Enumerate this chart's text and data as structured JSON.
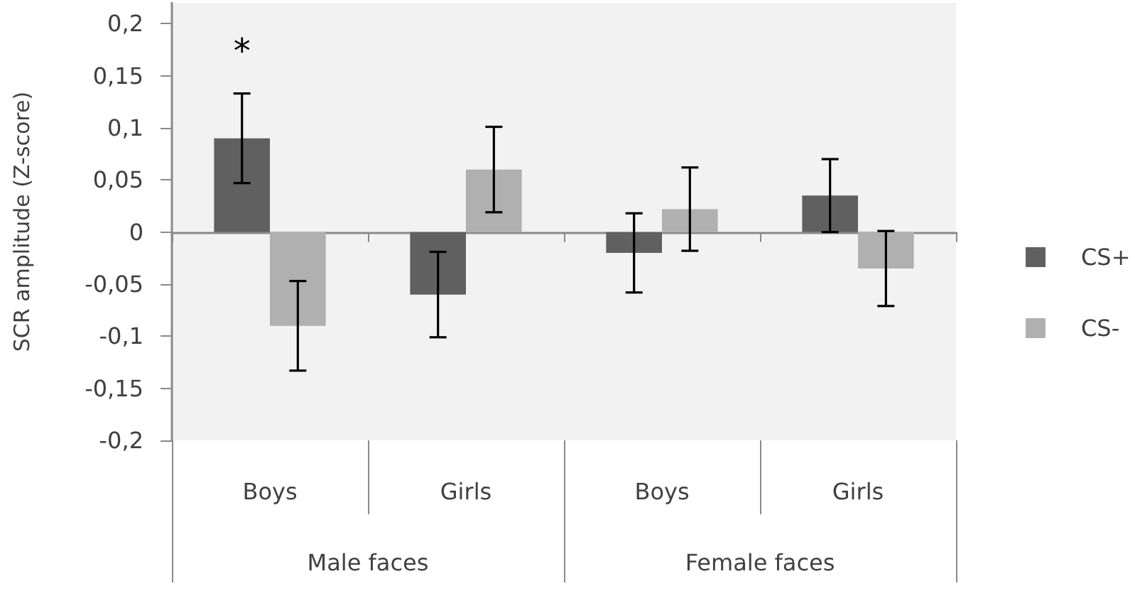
{
  "chart_data": {
    "type": "bar",
    "ylabel": "SCR amplitude (Z-score)",
    "categories": [
      "Boys",
      "Girls",
      "Boys",
      "Girls"
    ],
    "series": [
      {
        "name": "CS+",
        "color": "#606060",
        "values": [
          0.09,
          -0.06,
          -0.02,
          0.035
        ],
        "errors": [
          0.043,
          0.041,
          0.038,
          0.035
        ]
      },
      {
        "name": "CS-",
        "color": "#b0b0b0",
        "values": [
          -0.09,
          0.06,
          0.022,
          -0.035
        ],
        "errors": [
          0.043,
          0.041,
          0.04,
          0.036
        ]
      }
    ],
    "ylim": [
      -0.2,
      0.22
    ],
    "yticks": [
      {
        "value": -0.2,
        "label": "-0,2"
      },
      {
        "value": -0.15,
        "label": "-0,15"
      },
      {
        "value": -0.1,
        "label": "-0,1"
      },
      {
        "value": -0.05,
        "label": "-0,05"
      },
      0,
      {
        "value": 0.05,
        "label": "0,05"
      },
      {
        "value": 0.1,
        "label": "0,1"
      },
      {
        "value": 0.15,
        "label": "0,15"
      },
      {
        "value": 0.2,
        "label": "0,2"
      }
    ],
    "legend": "right",
    "annotations": [
      {
        "text": "*",
        "x": "Boys",
        "y": 0.09
      },
      "Male faces",
      "Female faces"
    ]
  }
}
